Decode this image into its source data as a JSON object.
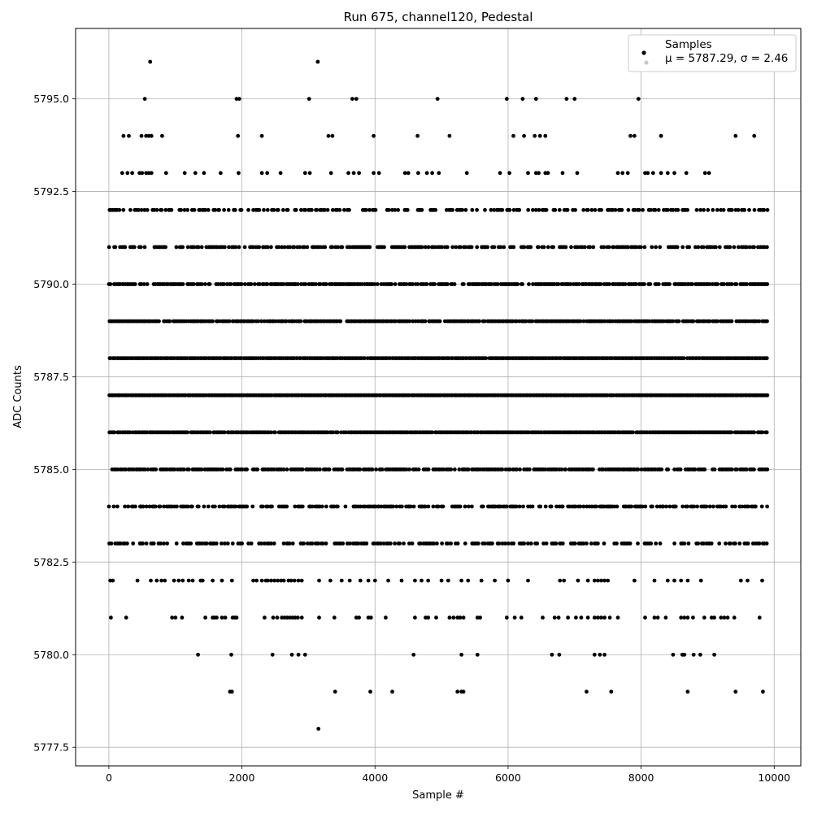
{
  "chart_data": {
    "type": "scatter",
    "title": "Run 675, channel120, Pedestal",
    "xlabel": "Sample #",
    "ylabel": "ADC Counts",
    "xlim": [
      -500,
      10400
    ],
    "ylim": [
      5777.0,
      5796.9
    ],
    "x_ticks": [
      0,
      2000,
      4000,
      6000,
      8000,
      10000
    ],
    "x_tick_labels": [
      "0",
      "2000",
      "4000",
      "6000",
      "8000",
      "10000"
    ],
    "y_ticks": [
      5777.5,
      5780.0,
      5782.5,
      5785.0,
      5787.5,
      5790.0,
      5792.5,
      5795.0
    ],
    "y_tick_labels": [
      "5777.5",
      "5780.0",
      "5782.5",
      "5785.0",
      "5787.5",
      "5790.0",
      "5792.5",
      "5795.0"
    ],
    "grid": true,
    "legend_position": "top-right",
    "legend": {
      "entries": [
        {
          "label": "Samples",
          "color": "#000000"
        },
        {
          "label": "μ = 5787.29, σ = 2.46",
          "color": "#c8c8c8"
        }
      ]
    },
    "series": [
      {
        "name": "Samples",
        "color": "#000000",
        "x_range": [
          0,
          9900
        ],
        "levels": [
          {
            "y": 5778,
            "x": [
              3150
            ]
          },
          {
            "y": 5779,
            "x": [
              1820,
              1850,
              3400,
              3930,
              4260,
              5240,
              5300,
              5330,
              7180,
              7550,
              8700,
              9420,
              9830
            ]
          },
          {
            "y": 5780,
            "x": [
              1340,
              1840,
              2460,
              2750,
              2850,
              2950,
              4580,
              5300,
              5540,
              6660,
              6770,
              7300,
              7380,
              7450,
              8480,
              8620,
              8650,
              8790,
              8890,
              9100
            ]
          },
          {
            "y": 5781,
            "x": [
              30,
              260,
              950,
              1000,
              1100,
              1450,
              1560,
              1590,
              1620,
              1700,
              1750,
              1860,
              1890,
              1920,
              2340,
              2470,
              2530,
              2600,
              2640,
              2680,
              2720,
              2760,
              2800,
              2840,
              2900,
              3160,
              3390,
              3720,
              3760,
              3900,
              3940,
              4160,
              4600,
              4760,
              4800,
              4920,
              5120,
              5180,
              5240,
              5280,
              5330,
              5540,
              5580,
              5980,
              6100,
              6200,
              6520,
              6700,
              6760,
              6900,
              7020,
              7100,
              7200,
              7300,
              7350,
              7400,
              7450,
              7530,
              7650,
              8060,
              8200,
              8250,
              8370,
              8600,
              8650,
              8700,
              8780,
              8950,
              9060,
              9100,
              9200,
              9250,
              9300,
              9400,
              9780
            ]
          },
          {
            "y": 5782,
            "x": [
              20,
              60,
              430,
              630,
              720,
              790,
              840,
              980,
              1050,
              1110,
              1200,
              1260,
              1380,
              1410,
              1560,
              1700,
              1850,
              2170,
              2220,
              2300,
              2360,
              2390,
              2440,
              2490,
              2540,
              2590,
              2630,
              2700,
              2740,
              2790,
              2850,
              2900,
              3160,
              3330,
              3500,
              3620,
              3780,
              3900,
              4000,
              4200,
              4400,
              4600,
              4700,
              4800,
              5000,
              5100,
              5300,
              5400,
              5600,
              5800,
              6000,
              6300,
              6780,
              6840,
              7050,
              7200,
              7300,
              7350,
              7400,
              7450,
              7500,
              7900,
              8200,
              8400,
              8500,
              8600,
              8700,
              8900,
              9500,
              9600,
              9820
            ]
          }
        ],
        "dense_levels": [
          {
            "y": 5783,
            "density": 0.55
          },
          {
            "y": 5784,
            "density": 0.62
          },
          {
            "y": 5785,
            "density": 0.78
          },
          {
            "y": 5786,
            "density": 0.95
          },
          {
            "y": 5787,
            "density": 1.0
          },
          {
            "y": 5788,
            "density": 0.98
          },
          {
            "y": 5789,
            "density": 0.88
          },
          {
            "y": 5790,
            "density": 0.8
          },
          {
            "y": 5791,
            "density": 0.6
          },
          {
            "y": 5792,
            "density": 0.48
          }
        ],
        "upper_levels": [
          {
            "y": 5793,
            "x": [
              200,
              280,
              350,
              460,
              500,
              560,
              600,
              640,
              860,
              1140,
              1300,
              1430,
              1680,
              1950,
              2300,
              2380,
              2580,
              2950,
              3020,
              3340,
              3600,
              3680,
              3760,
              3980,
              4060,
              4450,
              4500,
              4650,
              4780,
              4860,
              4960,
              5380,
              5880,
              6020,
              6300,
              6420,
              6460,
              6560,
              6600,
              6820,
              7040,
              7650,
              7720,
              7800,
              8060,
              8100,
              8180,
              8300,
              8400,
              8500,
              8680,
              8960,
              9020
            ]
          },
          {
            "y": 5794,
            "x": [
              220,
              300,
              490,
              560,
              600,
              640,
              800,
              1940,
              2300,
              3300,
              3360,
              3980,
              4640,
              5120,
              6080,
              6240,
              6400,
              6480,
              6560,
              7840,
              7900,
              8300,
              9420,
              9700
            ]
          },
          {
            "y": 5795,
            "x": [
              540,
              1920,
              1960,
              3010,
              3660,
              3720,
              4940,
              5980,
              6220,
              6420,
              6880,
              7000,
              7960
            ]
          },
          {
            "y": 5796,
            "x": [
              620,
              3140
            ]
          }
        ]
      }
    ]
  }
}
